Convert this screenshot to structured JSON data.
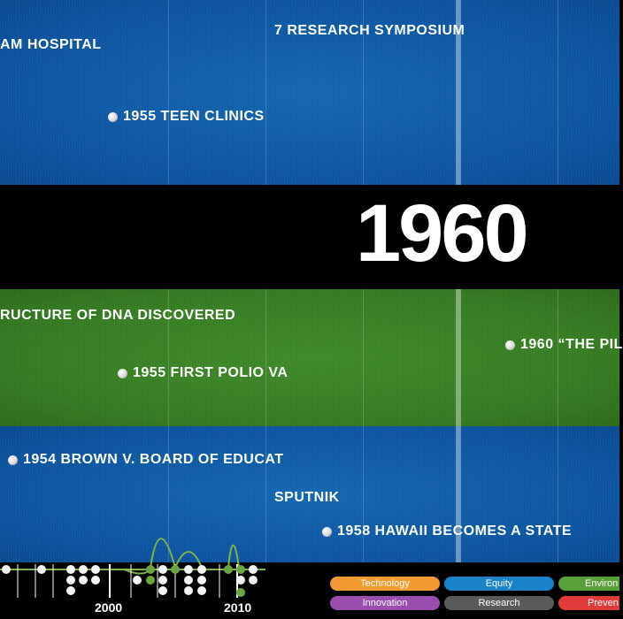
{
  "current_year": "1960",
  "colors": {
    "blue_band": "#0d54a0",
    "green_band": "#357a22",
    "accent_green": "#7fb34a",
    "technology": "#f29b30",
    "equity": "#1a82c8",
    "environment": "#5aa03a",
    "innovation": "#9a4fb0",
    "research": "#5a5a5a",
    "prevention": "#e03a3a"
  },
  "bands": {
    "top": {
      "events": [
        {
          "label": "AM HOSPITAL",
          "dot": false
        },
        {
          "label": "7 RESEARCH SYMPOSIUM",
          "dot": false
        },
        {
          "label": "1955 TEEN CLINICS",
          "dot": true
        }
      ]
    },
    "middle": {
      "events": [
        {
          "label": "RUCTURE OF DNA DISCOVERED",
          "dot": false
        },
        {
          "label": "1960 “THE PIL",
          "dot": true
        },
        {
          "label": "1955 FIRST POLIO VA",
          "dot": true
        }
      ]
    },
    "bottom": {
      "events": [
        {
          "label": "1954 BROWN V. BOARD OF EDUCAT",
          "dot": true
        },
        {
          "label": "SPUTNIK",
          "dot": false
        },
        {
          "label": "1958 HAWAII BECOMES A STATE",
          "dot": true
        }
      ]
    }
  },
  "mini_timeline": {
    "axis_labels": [
      "2000",
      "2010"
    ]
  },
  "legend": {
    "items": [
      {
        "label": "Technology",
        "color": "#f29b30"
      },
      {
        "label": "Equity",
        "color": "#1a82c8"
      },
      {
        "label": "Environ",
        "color": "#5aa03a"
      },
      {
        "label": "Innovation",
        "color": "#9a4fb0"
      },
      {
        "label": "Research",
        "color": "#5a5a5a"
      },
      {
        "label": "Preven",
        "color": "#e03a3a"
      }
    ]
  }
}
